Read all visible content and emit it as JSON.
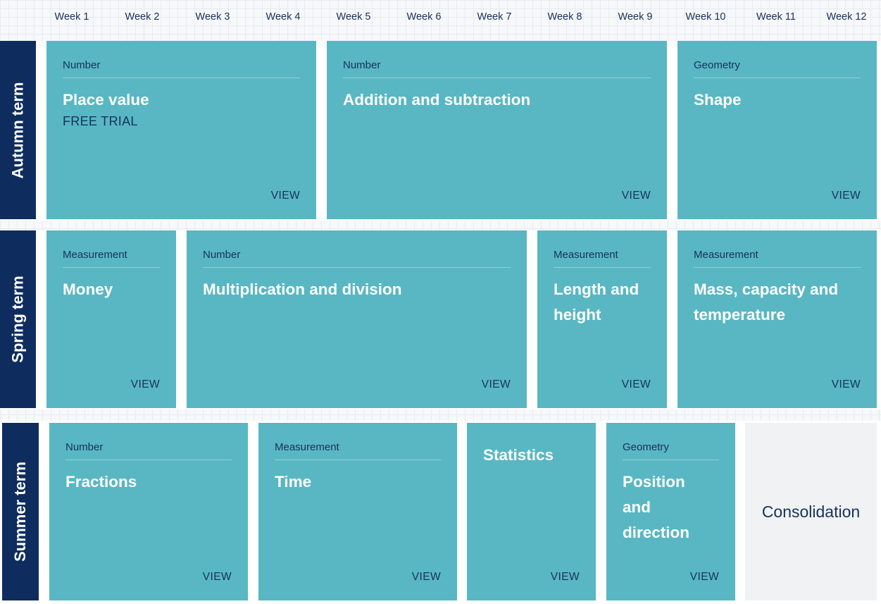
{
  "weeks": [
    "Week 1",
    "Week 2",
    "Week 3",
    "Week 4",
    "Week 5",
    "Week 6",
    "Week 7",
    "Week 8",
    "Week 9",
    "Week 10",
    "Week 11",
    "Week 12"
  ],
  "terms": [
    {
      "label": "Autumn term",
      "cards": [
        {
          "category": "Number",
          "title": "Place value",
          "subtitle": "FREE TRIAL",
          "action": "VIEW"
        },
        {
          "category": "Number",
          "title": "Addition and subtraction",
          "action": "VIEW"
        },
        {
          "category": "Geometry",
          "title": "Shape",
          "action": "VIEW"
        }
      ]
    },
    {
      "label": "Spring term",
      "cards": [
        {
          "category": "Measurement",
          "title": "Money",
          "action": "VIEW"
        },
        {
          "category": "Number",
          "title": "Multiplication and division",
          "action": "VIEW"
        },
        {
          "category": "Measurement",
          "title": "Length and height",
          "action": "VIEW"
        },
        {
          "category": "Measurement",
          "title": "Mass, capacity and temperature",
          "action": "VIEW"
        }
      ]
    },
    {
      "label": "Summer term",
      "cards": [
        {
          "category": "Number",
          "title": "Fractions",
          "action": "VIEW"
        },
        {
          "category": "Measurement",
          "title": "Time",
          "action": "VIEW"
        },
        {
          "title": "Statistics",
          "action": "VIEW"
        },
        {
          "category": "Geometry",
          "title": "Position and direction",
          "action": "VIEW"
        }
      ],
      "consolidation": "Consolidation"
    }
  ],
  "colors": {
    "term_label": "#0e2d5e",
    "card": "#58b7c3",
    "consolidation": "#f1f2f4",
    "card_text": "#173258"
  }
}
